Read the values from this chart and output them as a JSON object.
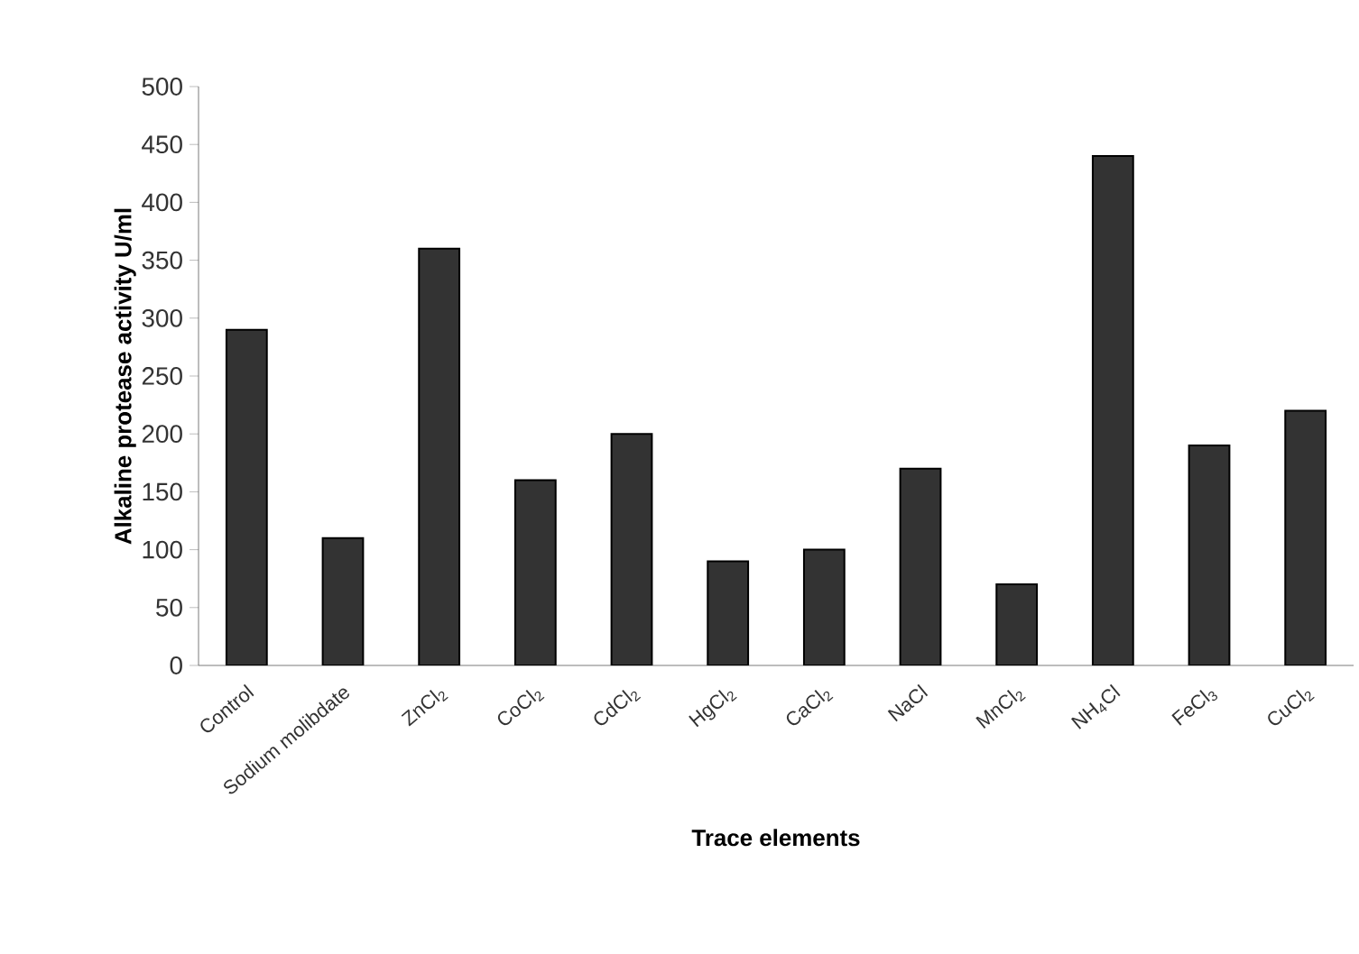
{
  "chart_data": {
    "type": "bar",
    "xlabel": "Trace elements",
    "ylabel": "Alkaline protease activity U/ml",
    "categories": [
      "Control",
      "Sodium molibdate",
      "ZnCl$_{2}$",
      "CoCl$_{2}$",
      "CdCl$_{2}$",
      "HgCl$_{2}$",
      "CaCl$_{2}$",
      "NaCl",
      "MnCl$_{2}$",
      "NH$_{4}$Cl",
      "FeCl$_{3}$",
      "CuCl$_{2}$"
    ],
    "values": [
      290,
      110,
      360,
      160,
      200,
      90,
      100,
      170,
      70,
      440,
      190,
      220
    ],
    "color": "#333333",
    "ylim": [
      0,
      500
    ],
    "yticks": [
      0,
      50,
      100,
      150,
      200,
      250,
      300,
      350,
      400,
      450,
      500
    ],
    "grid": false
  }
}
